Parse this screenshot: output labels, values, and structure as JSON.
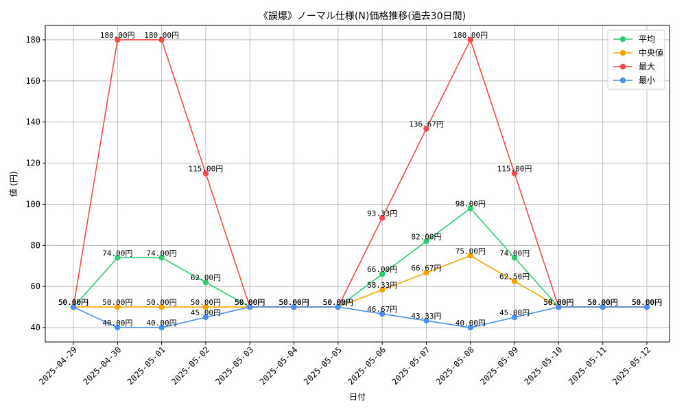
{
  "chart_data": {
    "type": "line",
    "title": "《誤爆》ノーマル仕様(N)価格推移(過去30日間)",
    "xlabel": "日付",
    "ylabel": "値 (円)",
    "categories": [
      "2025-04-29",
      "2025-04-30",
      "2025-05-01",
      "2025-05-02",
      "2025-05-03",
      "2025-05-04",
      "2025-05-05",
      "2025-05-06",
      "2025-05-07",
      "2025-05-08",
      "2025-05-09",
      "2025-05-10",
      "2025-05-11",
      "2025-05-12"
    ],
    "ylim": [
      33,
      187
    ],
    "yticks": [
      40,
      60,
      80,
      100,
      120,
      140,
      160,
      180
    ],
    "grid": true,
    "legend_position": "top-right",
    "series": [
      {
        "name": "平均",
        "color": "#2ecc71",
        "values": [
          50,
          74,
          74,
          62,
          50,
          50,
          50,
          66,
          82,
          98,
          74,
          50,
          50,
          50
        ],
        "labels": [
          "50.00円",
          "74.00円",
          "74.00円",
          "62.00円",
          "50.00円",
          "50.00円",
          "50.00円",
          "66.00円",
          "82.00円",
          "98.00円",
          "74.00円",
          "50.00円",
          "50.00円",
          "50.00円"
        ]
      },
      {
        "name": "中央値",
        "color": "#f5a300",
        "values": [
          50,
          50,
          50,
          50,
          50,
          50,
          50,
          58.33,
          66.67,
          75,
          62.5,
          50,
          50,
          50
        ],
        "labels": [
          "50.00円",
          "50.00円",
          "50.00円",
          "50.00円",
          "50.00円",
          "50.00円",
          "50.00円",
          "58.33円",
          "66.67円",
          "75.00円",
          "62.50円",
          "50.00円",
          "50.00円",
          "50.00円"
        ]
      },
      {
        "name": "最大",
        "color": "#f04a4a",
        "values": [
          50,
          180,
          180,
          115,
          50,
          50,
          50,
          93.33,
          136.67,
          180,
          115,
          50,
          50,
          50
        ],
        "labels": [
          "50.00円",
          "180.00円",
          "180.00円",
          "115.00円",
          "50.00円",
          "50.00円",
          "50.00円",
          "93.33円",
          "136.67円",
          "180.00円",
          "115.00円",
          "50.00円",
          "50.00円",
          "50.00円"
        ]
      },
      {
        "name": "最小",
        "color": "#4a90f0",
        "values": [
          50,
          40,
          40,
          45,
          50,
          50,
          50,
          46.67,
          43.33,
          40,
          45,
          50,
          50,
          50
        ],
        "labels": [
          "50.00円",
          "40.00円",
          "40.00円",
          "45.00円",
          "50.00円",
          "50.00円",
          "50.00円",
          "46.67円",
          "43.33円",
          "40.00円",
          "45.00円",
          "50.00円",
          "50.00円",
          "50.00円"
        ]
      }
    ]
  }
}
